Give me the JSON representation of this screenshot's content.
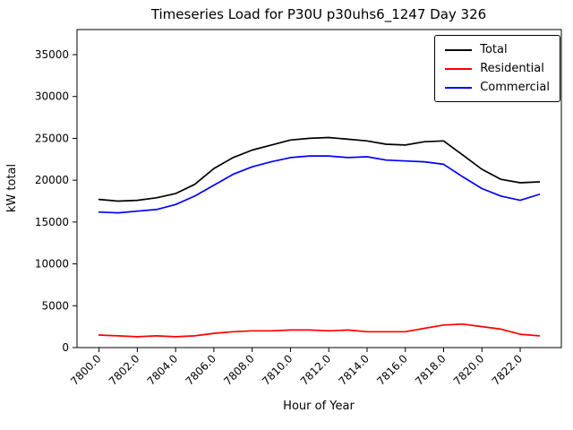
{
  "chart_data": {
    "type": "line",
    "title": "Timeseries Load for P30U p30uhs6_1247  Day 326",
    "xlabel": "Hour of Year",
    "ylabel": "kW total",
    "xlim": [
      7798.85,
      7824.15
    ],
    "ylim": [
      0,
      38000
    ],
    "grid": false,
    "legend_position": "upper right",
    "x_ticks": [
      7800,
      7802,
      7804,
      7806,
      7808,
      7810,
      7812,
      7814,
      7816,
      7818,
      7820,
      7822
    ],
    "x_tick_labels": [
      "7800.0",
      "7802.0",
      "7804.0",
      "7806.0",
      "7808.0",
      "7810.0",
      "7812.0",
      "7814.0",
      "7816.0",
      "7818.0",
      "7820.0",
      "7822.0"
    ],
    "y_ticks": [
      0,
      5000,
      10000,
      15000,
      20000,
      25000,
      30000,
      35000
    ],
    "y_tick_labels": [
      "0",
      "5000",
      "10000",
      "15000",
      "20000",
      "25000",
      "30000",
      "35000"
    ],
    "x": [
      7800,
      7801,
      7802,
      7803,
      7804,
      7805,
      7806,
      7807,
      7808,
      7809,
      7810,
      7811,
      7812,
      7813,
      7814,
      7815,
      7816,
      7817,
      7818,
      7819,
      7820,
      7821,
      7822,
      7823
    ],
    "series": [
      {
        "name": "Total",
        "color": "#000000",
        "values": [
          17700,
          17500,
          17600,
          17900,
          18400,
          19500,
          21400,
          22700,
          23600,
          24200,
          24800,
          25000,
          25100,
          24900,
          24700,
          24300,
          24200,
          24600,
          24700,
          23000,
          21300,
          20100,
          19700,
          19800
        ]
      },
      {
        "name": "Residential",
        "color": "#ff0000",
        "values": [
          1500,
          1400,
          1300,
          1400,
          1300,
          1400,
          1700,
          1900,
          2000,
          2000,
          2100,
          2100,
          2000,
          2100,
          1900,
          1900,
          1900,
          2300,
          2700,
          2800,
          2500,
          2200,
          1600,
          1400
        ]
      },
      {
        "name": "Commercial",
        "color": "#0000ff",
        "values": [
          16200,
          16100,
          16300,
          16500,
          17100,
          18100,
          19400,
          20700,
          21600,
          22200,
          22700,
          22900,
          22900,
          22700,
          22800,
          22400,
          22300,
          22200,
          21900,
          20400,
          19000,
          18100,
          17600,
          18300
        ]
      }
    ]
  }
}
